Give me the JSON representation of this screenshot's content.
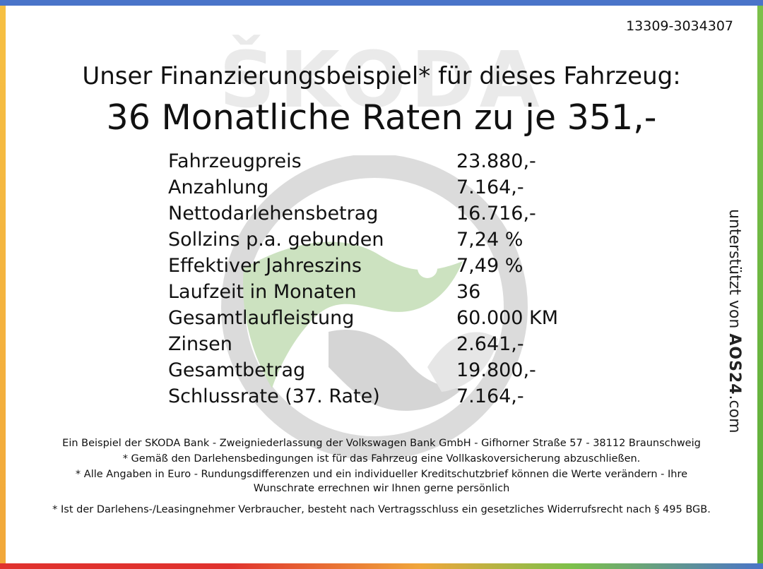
{
  "reference_number": "13309-3034307",
  "headline": "Unser Finanzierungsbeispiel* für dieses Fahrzeug:",
  "subheadline": "36 Monatliche Raten zu je 351,-",
  "watermark": {
    "brand_text": "ŠKODA"
  },
  "finance_rows": [
    {
      "label": "Fahrzeugpreis",
      "value": "23.880,-"
    },
    {
      "label": "Anzahlung",
      "value": "7.164,-"
    },
    {
      "label": "Nettodarlehensbetrag",
      "value": "16.716,-"
    },
    {
      "label": "Sollzins p.a. gebunden",
      "value": "7,24 %"
    },
    {
      "label": "Effektiver Jahreszins",
      "value": "7,49 %"
    },
    {
      "label": "Laufzeit in Monaten",
      "value": "36"
    },
    {
      "label": "Gesamtlaufleistung",
      "value": "60.000 KM"
    },
    {
      "label": "Zinsen",
      "value": "2.641,-"
    },
    {
      "label": "Gesamtbetrag",
      "value": "19.800,-"
    },
    {
      "label": "Schlussrate (37. Rate)",
      "value": "7.164,-"
    }
  ],
  "side_credit": {
    "prefix": "unterstützt von",
    "brand": "AOS24",
    "suffix": ".com"
  },
  "footnotes": {
    "bank": "Ein Beispiel der SKODA Bank - Zweigniederlassung der Volkswagen Bank GmbH - Gifhorner Straße 57 - 38112 Braunschweig",
    "insurance": "* Gemäß den Darlehensbedingungen ist für das Fahrzeug eine Vollkaskoversicherung abzuschließen.",
    "euro": "* Alle Angaben in Euro - Rundungsdifferenzen und ein individueller Kreditschutzbrief können die Werte verändern - Ihre Wunschrate errechnen wir Ihnen gerne persönlich",
    "withdrawal": "* Ist der Darlehens-/Leasingnehmer Verbraucher, besteht nach Vertragsschluss ein gesetzliches Widerrufsrecht nach § 495 BGB."
  },
  "colors": {
    "frame_top": "#4a74c9",
    "frame_left": "#f6c043",
    "frame_right": "#7cc04a",
    "frame_bottom": "#e0322e",
    "watermark_green": "#8fc77a",
    "brand_accent": "#4a74c9"
  }
}
